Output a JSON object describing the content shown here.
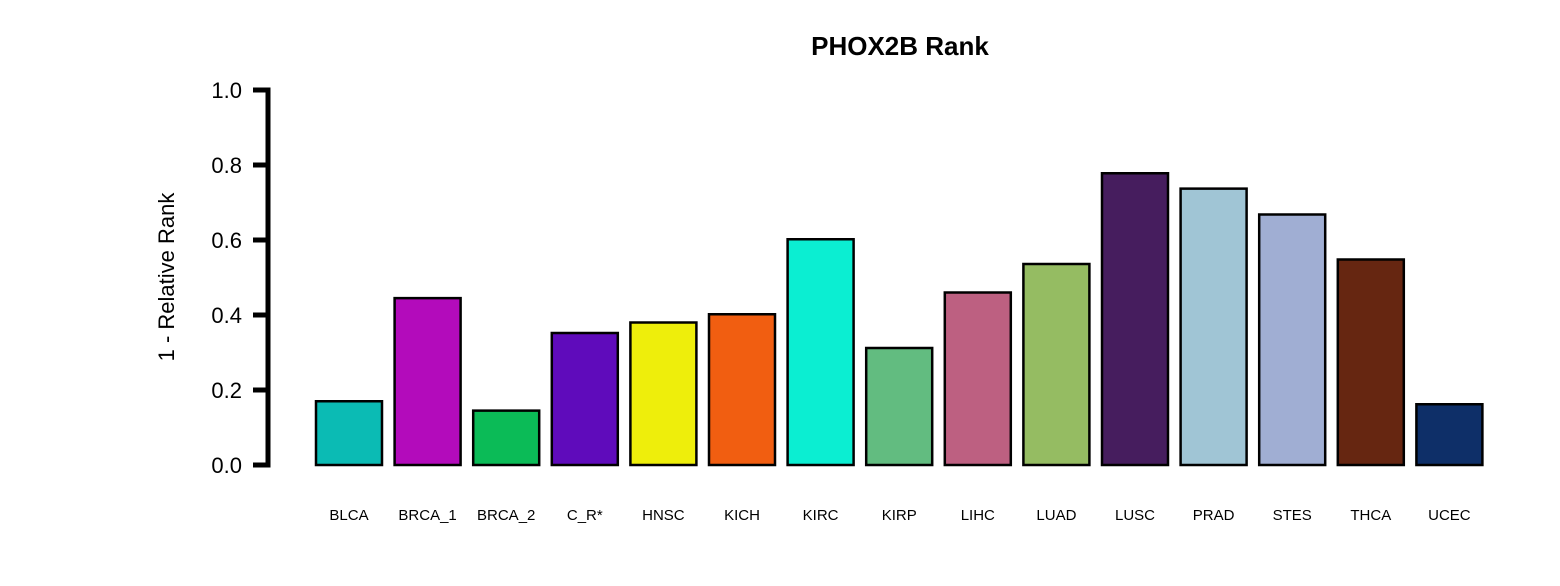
{
  "chart_data": {
    "type": "bar",
    "title": "PHOX2B Rank",
    "xlabel": "",
    "ylabel": "1 - Relative Rank",
    "ylim": [
      0,
      1
    ],
    "yticks": [
      "0.0",
      "0.2",
      "0.4",
      "0.6",
      "0.8",
      "1.0"
    ],
    "grid": false,
    "legend": "none",
    "categories": [
      "BLCA",
      "BRCA_1",
      "BRCA_2",
      "C_R*",
      "HNSC",
      "KICH",
      "KIRC",
      "KIRP",
      "LIHC",
      "LUAD",
      "LUSC",
      "PRAD",
      "STES",
      "THCA",
      "UCEC"
    ],
    "values": [
      0.17,
      0.445,
      0.145,
      0.352,
      0.38,
      0.402,
      0.602,
      0.312,
      0.46,
      0.536,
      0.778,
      0.737,
      0.668,
      0.548,
      0.162
    ],
    "colors": [
      "#0BBBB4",
      "#B30BBB",
      "#0BBB57",
      "#5F0BBB",
      "#EEEE0B",
      "#F15E11",
      "#0BEED2",
      "#62BC80",
      "#BD6081",
      "#95BC62",
      "#461D5E",
      "#A0C5D5",
      "#A0AED3",
      "#662611",
      "#0E2F68"
    ]
  }
}
